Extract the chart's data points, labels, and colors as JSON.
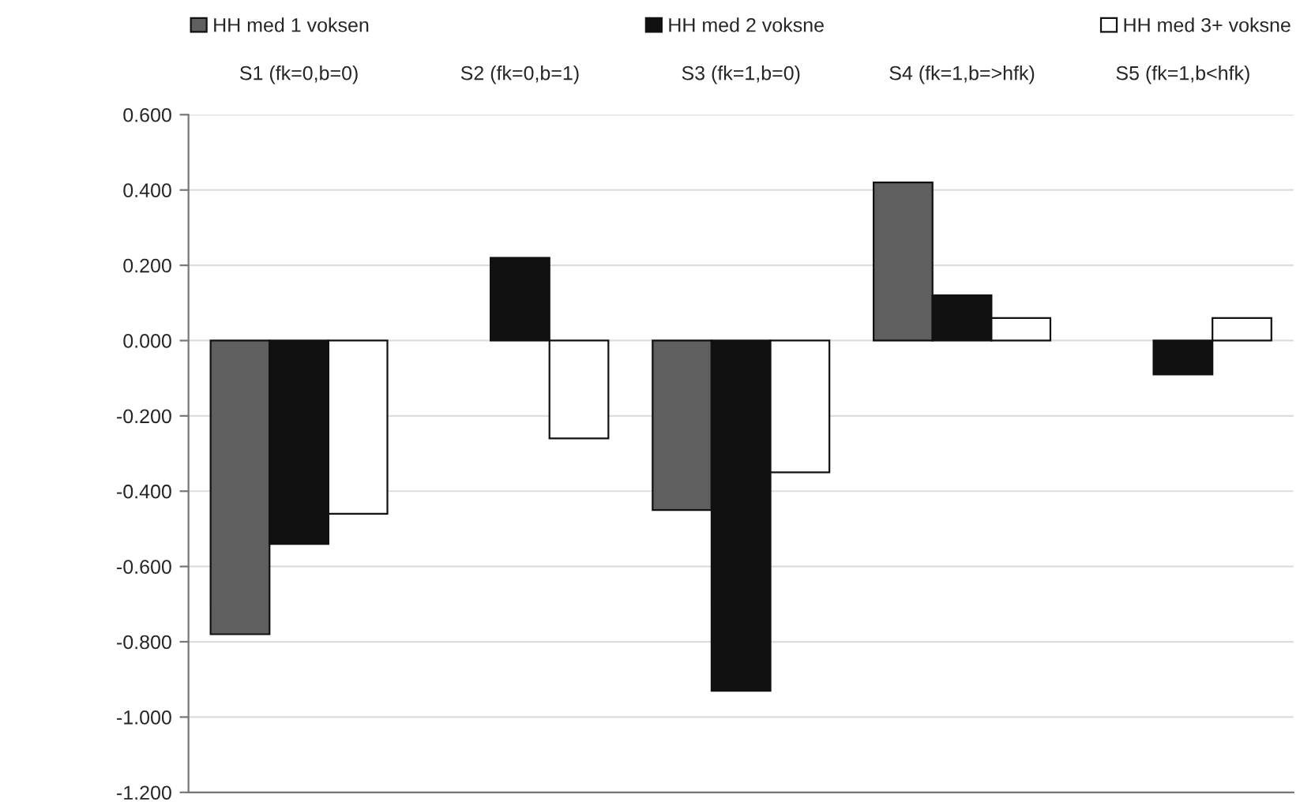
{
  "chart_data": {
    "type": "bar",
    "categories": [
      "S1 (fk=0,b=0)",
      "S2 (fk=0,b=1)",
      "S3 (fk=1,b=0)",
      "S4 (fk=1,b=>hfk)",
      "S5 (fk=1,b<hfk)"
    ],
    "series": [
      {
        "name": "HH med 1 voksen",
        "color": "#5f5f5f",
        "values": [
          -0.78,
          null,
          -0.45,
          0.42,
          null
        ]
      },
      {
        "name": "HH med 2 voksne",
        "color": "#111111",
        "values": [
          -0.54,
          0.22,
          -0.93,
          0.12,
          -0.09
        ]
      },
      {
        "name": "HH med 3+ voksne",
        "color": "#ffffff",
        "values": [
          -0.46,
          -0.26,
          -0.35,
          0.06,
          0.06
        ]
      }
    ],
    "ylim": [
      -1.2,
      0.6
    ],
    "yticks": [
      {
        "value": -1.2,
        "label": "-1.200"
      },
      {
        "value": -1.0,
        "label": "-1.000"
      },
      {
        "value": -0.8,
        "label": "-0.800"
      },
      {
        "value": -0.6,
        "label": "-0.600"
      },
      {
        "value": -0.4,
        "label": "-0.400"
      },
      {
        "value": -0.2,
        "label": "-0.200"
      },
      {
        "value": 0.0,
        "label": "0.000"
      },
      {
        "value": 0.2,
        "label": "0.200"
      },
      {
        "value": 0.4,
        "label": "0.400"
      },
      {
        "value": 0.6,
        "label": "0.600"
      }
    ],
    "grid": "y",
    "legend": "top"
  }
}
